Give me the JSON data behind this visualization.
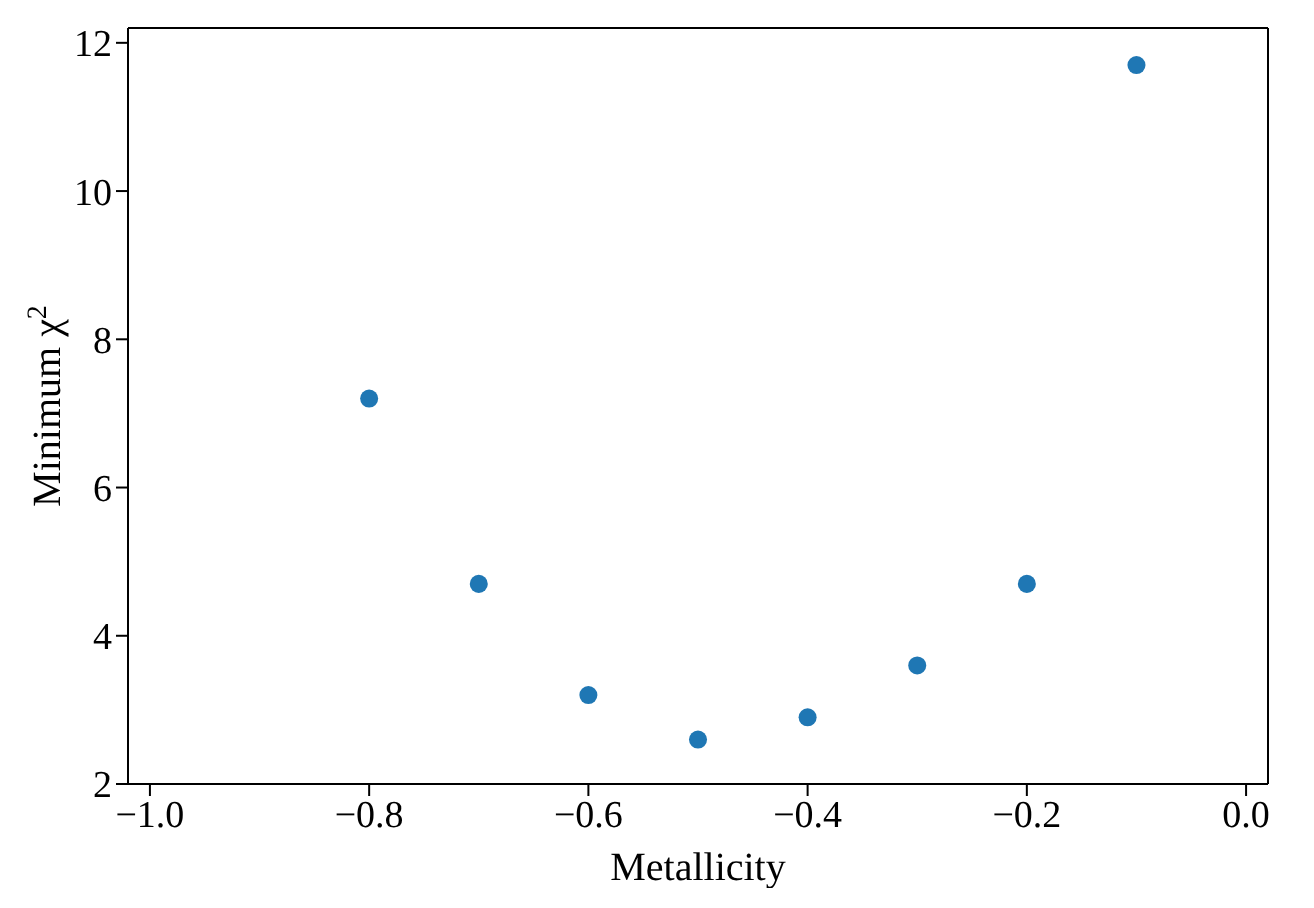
{
  "chart_data": {
    "type": "scatter",
    "xlabel": "Metallicity",
    "ylabel": "Minimum χ$^{2}$",
    "x": [
      -0.8,
      -0.7,
      -0.6,
      -0.5,
      -0.4,
      -0.3,
      -0.2,
      -0.1
    ],
    "series": [
      {
        "color": "#1f77b4",
        "values": [
          7.2,
          4.7,
          3.2,
          2.6,
          2.9,
          3.6,
          4.7,
          11.7
        ]
      }
    ],
    "xlim": [
      -1.02,
      0.02
    ],
    "ylim": [
      2,
      12.2
    ],
    "xticks": [
      {
        "value": -1.0,
        "label": "−1.0"
      },
      {
        "value": -0.8,
        "label": "−0.8"
      },
      {
        "value": -0.6,
        "label": "−0.6"
      },
      {
        "value": -0.4,
        "label": "−0.4"
      },
      {
        "value": -0.2,
        "label": "−0.2"
      },
      {
        "value": 0,
        "label": "0.0"
      }
    ],
    "yticks": [
      2,
      4,
      6,
      8,
      10,
      12
    ],
    "marker": "circle",
    "grid": false
  }
}
